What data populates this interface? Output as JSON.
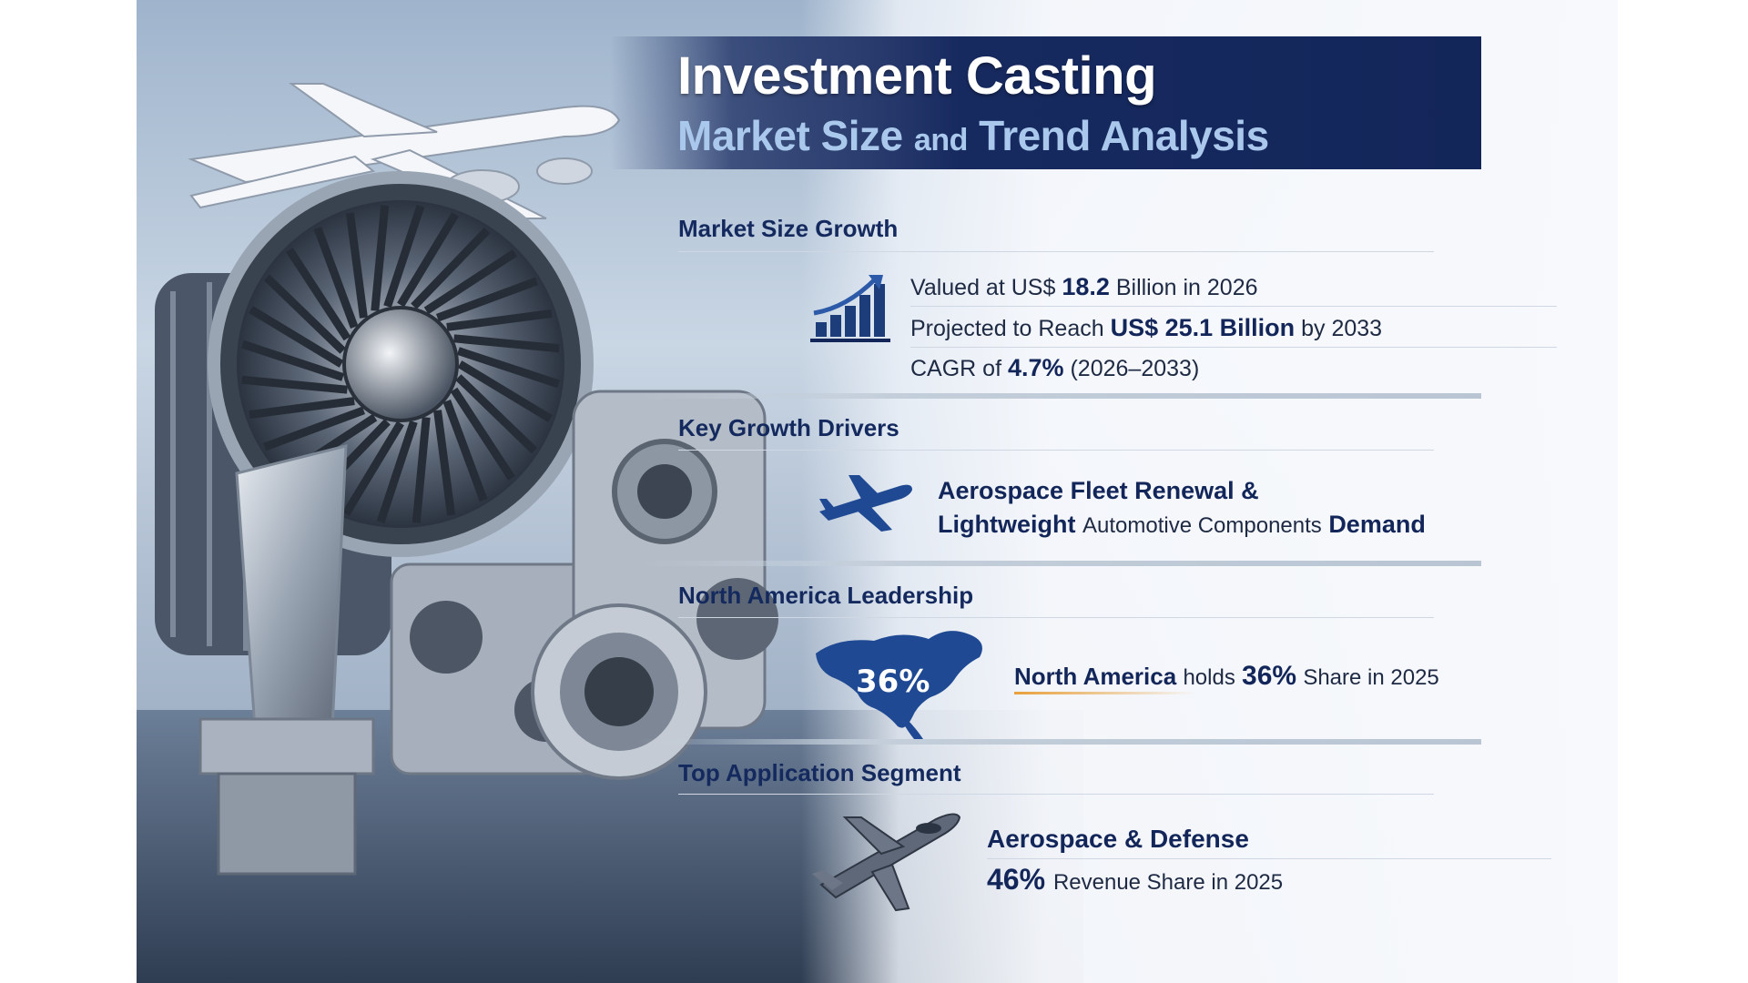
{
  "header": {
    "title": "Investment Casting",
    "subtitle_a": "Market Size",
    "subtitle_and": "and",
    "subtitle_b": "Trend Analysis"
  },
  "sections": {
    "market_size": {
      "title": "Market Size Growth",
      "l1_pre": "Valued at US$",
      "l1_value": "18.2",
      "l1_post": "Billion in 2026",
      "l2_pre": "Projected to Reach",
      "l2_value": "US$ 25.1 Billion",
      "l2_post": "by 2033",
      "l3_pre": "CAGR of",
      "l3_value": "4.7%",
      "l3_post": "(2026–2033)"
    },
    "drivers": {
      "title": "Key Growth Drivers",
      "l1": "Aerospace Fleet Renewal &",
      "l2_bold": "Lightweight",
      "l2_thin": "Automotive Components",
      "l2_end": "Demand"
    },
    "north_america": {
      "title": "North America Leadership",
      "map_label": "36%",
      "region": "North America",
      "holds": "holds",
      "share": "36%",
      "post": "Share in 2025"
    },
    "top_segment": {
      "title": "Top Application Segment",
      "segment": "Aerospace & Defense",
      "share": "46%",
      "post": "Revenue Share in 2025"
    }
  },
  "icons": [
    "bar-growth-chart-icon",
    "airplane-icon",
    "north-america-map-icon",
    "fighter-jet-icon"
  ],
  "colors": {
    "navy": "#13265a",
    "accent_orange": "#e8a03a",
    "light_blue": "#a9c8ec"
  }
}
